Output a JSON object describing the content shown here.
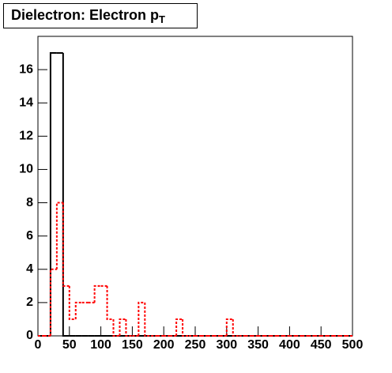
{
  "chart_data": {
    "type": "histogram",
    "title": "Dielectron: Electron p",
    "title_subscript": "T",
    "bins": [
      0,
      10,
      20,
      30,
      40,
      50,
      60,
      70,
      80,
      90,
      100,
      110,
      120,
      130,
      140,
      150,
      160,
      170,
      180,
      190,
      200,
      210,
      220,
      230,
      240,
      250,
      260,
      270,
      280,
      290,
      300,
      310,
      320,
      330,
      340,
      350,
      360,
      370,
      380,
      390,
      400,
      410,
      420,
      430,
      440,
      450,
      460,
      470,
      480,
      490,
      500
    ],
    "series": [
      {
        "color": "#000000",
        "values": [
          0,
          0,
          17,
          17,
          0,
          0,
          0,
          0,
          0,
          0,
          0,
          0,
          0,
          0,
          0,
          0,
          0,
          0,
          0,
          0,
          0,
          0,
          0,
          0,
          0,
          0,
          0,
          0,
          0,
          0,
          0,
          0,
          0,
          0,
          0,
          0,
          0,
          0,
          0,
          0,
          0,
          0,
          0,
          0,
          0,
          0,
          0,
          0,
          0,
          0
        ]
      },
      {
        "color": "#ff0000",
        "dashed": true,
        "values": [
          0,
          0,
          4,
          8,
          3,
          1,
          2,
          2,
          2,
          3,
          3,
          1,
          0,
          1,
          0,
          0,
          2,
          0,
          0,
          0,
          0,
          0,
          1,
          0,
          0,
          0,
          0,
          0,
          0,
          0,
          1,
          0,
          0,
          0,
          0,
          0,
          0,
          0,
          0,
          0,
          0,
          0,
          0,
          0,
          0,
          0,
          0,
          0,
          0,
          0
        ]
      }
    ],
    "xlim": [
      0,
      500
    ],
    "xticks": [
      0,
      50,
      100,
      150,
      200,
      250,
      300,
      350,
      400,
      450,
      500
    ],
    "ylim": [
      0,
      18
    ],
    "yticks": [
      0,
      2,
      4,
      6,
      8,
      10,
      12,
      14,
      16
    ]
  }
}
